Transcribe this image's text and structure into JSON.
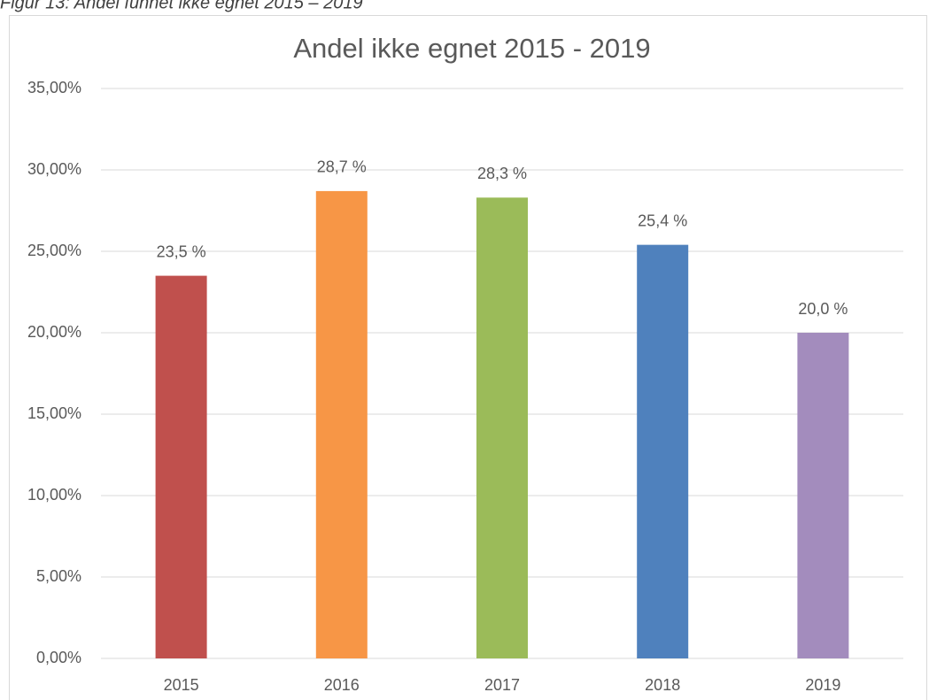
{
  "caption": "Figur 13: Andel funnet ikke egnet 2015 – 2019",
  "chart_data": {
    "type": "bar",
    "title": "Andel ikke egnet 2015 - 2019",
    "categories": [
      "2015",
      "2016",
      "2017",
      "2018",
      "2019"
    ],
    "values": [
      23.5,
      28.7,
      28.3,
      25.4,
      20.0
    ],
    "value_labels": [
      "23,5 %",
      "28,7 %",
      "28,3 %",
      "25,4 %",
      "20,0 %"
    ],
    "colors": [
      "#c0504d",
      "#f79646",
      "#9bbb59",
      "#4f81bd",
      "#a38cbd"
    ],
    "ylim": [
      0,
      35
    ],
    "yticks": [
      {
        "value": 0,
        "label": "0,00%"
      },
      {
        "value": 5,
        "label": "5,00%"
      },
      {
        "value": 10,
        "label": "10,00%"
      },
      {
        "value": 15,
        "label": "15,00%"
      },
      {
        "value": 20,
        "label": "20,00%"
      },
      {
        "value": 25,
        "label": "25,00%"
      },
      {
        "value": 30,
        "label": "30,00%"
      },
      {
        "value": 35,
        "label": "35,00%"
      }
    ],
    "grid": true
  }
}
